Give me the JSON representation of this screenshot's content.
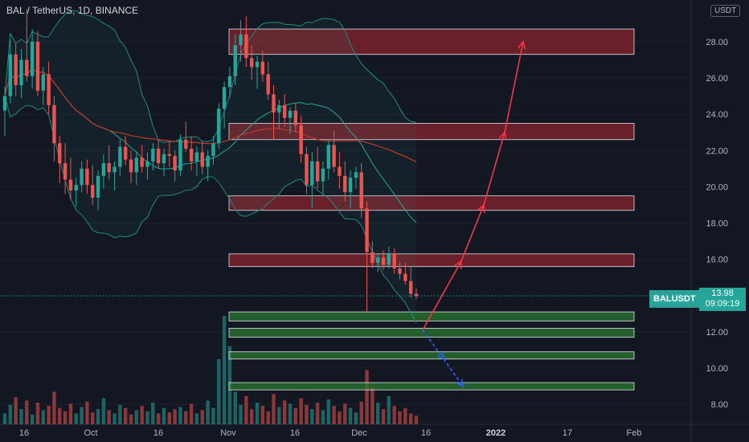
{
  "header": {
    "symbol_title": "BAL / TetherUS, 1D, BINANCE",
    "currency_badge": "USDT"
  },
  "price_tag": {
    "symbol": "BALUSDT",
    "price": "13.98",
    "countdown": "09:09:19"
  },
  "chart_data": {
    "type": "candlestick",
    "title": "BAL / TetherUS, 1D, BINANCE",
    "ylim": [
      6.9,
      30.3
    ],
    "y_ticks": [
      8,
      10,
      12,
      14,
      16,
      18,
      20,
      22,
      24,
      26,
      28
    ],
    "y_tick_labels": [
      "8.00",
      "10.00",
      "12.00",
      "14.00",
      "16.00",
      "18.00",
      "20.00",
      "22.00",
      "24.00",
      "26.00",
      "28.00"
    ],
    "x_tick_labels": [
      "16",
      "Oct",
      "16",
      "Nov",
      "16",
      "Dec",
      "16",
      "2022",
      "17",
      "Feb"
    ],
    "current_price": 13.98,
    "colors": {
      "up": "#26a69a",
      "down": "#ef5350",
      "resistance": "#ef5350",
      "support": "#4caf50",
      "projection": "#f23645",
      "breakdown": "#2962ff"
    },
    "candles_ohlc": [
      [
        24.2,
        25.5,
        22.8,
        25.0
      ],
      [
        25.0,
        28.1,
        24.6,
        27.3
      ],
      [
        27.3,
        27.9,
        25.0,
        25.6
      ],
      [
        25.6,
        27.6,
        24.9,
        27.0
      ],
      [
        27.0,
        29.8,
        25.8,
        26.1
      ],
      [
        26.1,
        28.7,
        25.4,
        28.0
      ],
      [
        28.0,
        28.6,
        25.0,
        25.3
      ],
      [
        25.3,
        26.6,
        24.5,
        26.2
      ],
      [
        26.2,
        26.9,
        24.0,
        24.5
      ],
      [
        24.5,
        25.0,
        21.4,
        22.4
      ],
      [
        22.4,
        22.8,
        20.2,
        21.3
      ],
      [
        21.3,
        22.4,
        19.6,
        20.4
      ],
      [
        20.4,
        21.6,
        19.3,
        19.8
      ],
      [
        19.8,
        20.5,
        18.9,
        20.1
      ],
      [
        20.1,
        21.4,
        19.7,
        21.0
      ],
      [
        21.0,
        21.5,
        19.6,
        20.1
      ],
      [
        20.1,
        21.2,
        19.0,
        19.4
      ],
      [
        19.4,
        20.9,
        18.7,
        20.6
      ],
      [
        20.6,
        21.8,
        19.9,
        21.3
      ],
      [
        21.3,
        22.3,
        20.4,
        20.8
      ],
      [
        20.8,
        21.4,
        19.8,
        21.1
      ],
      [
        21.1,
        22.6,
        20.6,
        22.2
      ],
      [
        22.2,
        22.8,
        21.2,
        21.5
      ],
      [
        21.5,
        22.0,
        20.2,
        20.8
      ],
      [
        20.8,
        21.9,
        20.1,
        21.6
      ],
      [
        21.6,
        22.3,
        20.8,
        21.1
      ],
      [
        21.1,
        21.9,
        20.4,
        21.4
      ],
      [
        21.4,
        22.4,
        20.9,
        22.1
      ],
      [
        22.1,
        22.6,
        21.0,
        21.3
      ],
      [
        21.3,
        22.1,
        20.6,
        21.8
      ],
      [
        21.8,
        22.5,
        21.1,
        21.7
      ],
      [
        21.7,
        22.0,
        20.3,
        20.9
      ],
      [
        20.9,
        22.9,
        20.6,
        22.6
      ],
      [
        22.6,
        23.6,
        21.9,
        22.1
      ],
      [
        22.1,
        22.8,
        20.9,
        21.4
      ],
      [
        21.4,
        22.2,
        20.6,
        21.9
      ],
      [
        21.9,
        22.5,
        20.7,
        21.1
      ],
      [
        21.1,
        22.0,
        20.3,
        21.7
      ],
      [
        21.7,
        22.8,
        21.2,
        22.4
      ],
      [
        22.4,
        24.6,
        22.1,
        24.3
      ],
      [
        24.3,
        25.8,
        23.2,
        25.5
      ],
      [
        25.5,
        26.6,
        24.9,
        26.1
      ],
      [
        26.1,
        28.4,
        25.6,
        27.8
      ],
      [
        27.8,
        29.2,
        26.9,
        28.4
      ],
      [
        28.4,
        29.4,
        26.6,
        27.1
      ],
      [
        27.1,
        27.8,
        25.9,
        26.6
      ],
      [
        26.6,
        27.2,
        25.4,
        26.9
      ],
      [
        26.9,
        27.5,
        25.8,
        26.2
      ],
      [
        26.2,
        26.9,
        24.8,
        25.1
      ],
      [
        25.1,
        25.6,
        22.6,
        24.1
      ],
      [
        24.1,
        24.8,
        23.2,
        24.5
      ],
      [
        24.5,
        25.1,
        23.3,
        23.8
      ],
      [
        23.8,
        24.4,
        22.9,
        24.2
      ],
      [
        24.2,
        24.6,
        23.0,
        23.4
      ],
      [
        23.4,
        23.9,
        21.3,
        21.8
      ],
      [
        21.8,
        22.2,
        19.6,
        20.1
      ],
      [
        20.1,
        21.9,
        18.8,
        21.4
      ],
      [
        21.4,
        22.2,
        19.9,
        20.3
      ],
      [
        20.3,
        21.4,
        19.6,
        21.0
      ],
      [
        21.0,
        22.6,
        20.4,
        22.3
      ],
      [
        22.3,
        23.1,
        20.8,
        21.1
      ],
      [
        21.1,
        21.9,
        19.9,
        20.6
      ],
      [
        20.6,
        21.4,
        19.2,
        19.7
      ],
      [
        19.7,
        20.9,
        18.8,
        20.5
      ],
      [
        20.5,
        21.1,
        19.9,
        20.8
      ],
      [
        20.8,
        21.3,
        18.3,
        18.8
      ],
      [
        18.8,
        19.2,
        13.1,
        16.4
      ],
      [
        16.4,
        17.0,
        15.5,
        15.8
      ],
      [
        15.8,
        16.3,
        15.3,
        16.1
      ],
      [
        16.1,
        16.5,
        15.4,
        15.7
      ],
      [
        15.7,
        16.7,
        15.5,
        16.3
      ],
      [
        16.3,
        16.6,
        15.2,
        15.5
      ],
      [
        15.5,
        15.9,
        14.9,
        15.2
      ],
      [
        15.2,
        15.8,
        14.6,
        14.8
      ],
      [
        14.8,
        15.6,
        13.9,
        14.1
      ],
      [
        14.1,
        14.4,
        13.8,
        13.98
      ]
    ],
    "volume_relative": [
      0.1,
      0.18,
      0.25,
      0.14,
      0.22,
      0.09,
      0.2,
      0.13,
      0.17,
      0.3,
      0.15,
      0.12,
      0.19,
      0.1,
      0.16,
      0.21,
      0.11,
      0.14,
      0.24,
      0.13,
      0.1,
      0.18,
      0.15,
      0.09,
      0.13,
      0.17,
      0.12,
      0.2,
      0.1,
      0.15,
      0.11,
      0.14,
      0.16,
      0.12,
      0.19,
      0.1,
      0.13,
      0.22,
      0.15,
      0.6,
      1.0,
      0.72,
      0.3,
      0.18,
      0.26,
      0.14,
      0.2,
      0.17,
      0.12,
      0.28,
      0.16,
      0.22,
      0.19,
      0.15,
      0.24,
      0.18,
      0.14,
      0.2,
      0.13,
      0.23,
      0.17,
      0.12,
      0.19,
      0.15,
      0.11,
      0.21,
      0.5,
      0.34,
      0.2,
      0.14,
      0.26,
      0.17,
      0.12,
      0.15,
      0.1,
      0.08
    ],
    "resistance_zones": [
      [
        27.3,
        28.7
      ],
      [
        22.6,
        23.5
      ],
      [
        18.7,
        19.5
      ],
      [
        15.6,
        16.3
      ]
    ],
    "support_zones": [
      [
        12.6,
        13.1
      ],
      [
        11.7,
        12.2
      ],
      [
        10.5,
        10.9
      ],
      [
        8.8,
        9.2
      ]
    ],
    "projection_path_up": [
      [
        0,
        12.1
      ],
      [
        1,
        15.9
      ],
      [
        2,
        19.0
      ],
      [
        3,
        23.0
      ],
      [
        4,
        28.0
      ]
    ],
    "projection_path_down": [
      [
        0,
        12.1
      ],
      [
        1,
        10.5
      ],
      [
        2,
        9.0
      ]
    ]
  }
}
